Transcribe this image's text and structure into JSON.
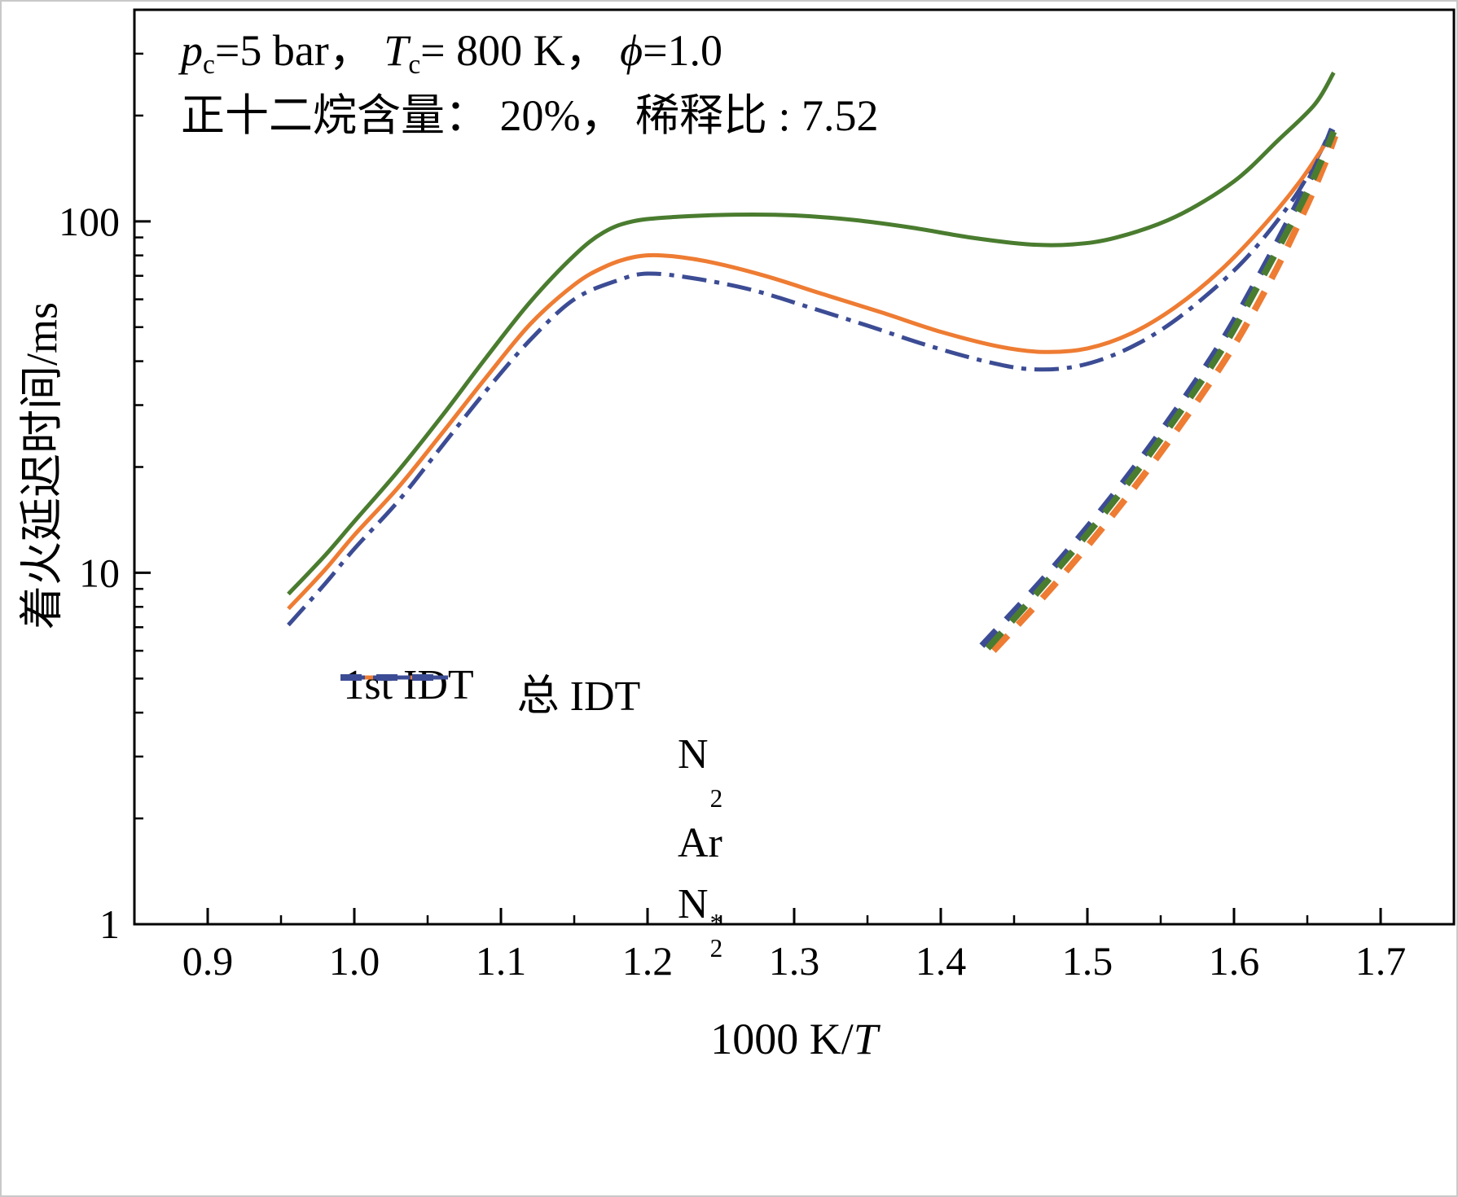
{
  "annotation": {
    "line1_parts": [
      {
        "t": "p",
        "style": "italic"
      },
      {
        "t": "c",
        "style": "sub"
      },
      {
        "t": "=5 bar， "
      },
      {
        "t": "T",
        "style": "italic"
      },
      {
        "t": "c",
        "style": "sub"
      },
      {
        "t": "= 800 K， "
      },
      {
        "t": "ϕ",
        "style": "italic"
      },
      {
        "t": "=1.0"
      }
    ],
    "line2_parts": [
      {
        "t": "正十二烷含量： 20%， 稀释比 : 7.52"
      }
    ]
  },
  "axis": {
    "ylabel": "着火延迟时间/ms",
    "xlabel_parts": [
      {
        "t": "1000 K/"
      },
      {
        "t": "T",
        "style": "italic"
      }
    ]
  },
  "legend": {
    "col1_header": "1st IDT",
    "col2_header": "总 IDT",
    "rows": [
      {
        "name": "N2",
        "main": "N",
        "sup": "",
        "sub": "2",
        "color": "#4a7c2f",
        "first_style": "dashed",
        "total_style": "solid"
      },
      {
        "name": "Ar",
        "main": "Ar",
        "sup": "",
        "sub": "",
        "color": "#ee7c33",
        "first_style": "dashed",
        "total_style": "solid"
      },
      {
        "name": "N2*",
        "main": "N",
        "sup": "*",
        "sub": "2",
        "color": "#3c4c94",
        "first_style": "dashed",
        "total_style": "dashdot"
      }
    ]
  },
  "chart_data": {
    "type": "line",
    "title": "",
    "xlabel": "1000 K/T",
    "ylabel": "着火延迟时间/ms",
    "x_axis": {
      "lim": [
        0.85,
        1.75
      ],
      "ticks": [
        "0.9",
        "1.0",
        "1.1",
        "1.2",
        "1.3",
        "1.4",
        "1.5",
        "1.6",
        "1.7"
      ],
      "minor_step": 0.05
    },
    "y_axis": {
      "scale": "log",
      "lim": [
        1,
        400
      ],
      "ticks": [
        "1",
        "10",
        "100"
      ]
    },
    "grid": false,
    "legend_position": "inside lower-center",
    "series": [
      {
        "id": "n2star-total",
        "name": "N2* 总 IDT",
        "color": "#3c4c94",
        "line_type": "dashdot",
        "points": [
          [
            0.955,
            7.1
          ],
          [
            0.98,
            9.3
          ],
          [
            1.0,
            11.7
          ],
          [
            1.03,
            16
          ],
          [
            1.06,
            23
          ],
          [
            1.09,
            33
          ],
          [
            1.12,
            46
          ],
          [
            1.15,
            60
          ],
          [
            1.18,
            68
          ],
          [
            1.2,
            71
          ],
          [
            1.23,
            69
          ],
          [
            1.27,
            64
          ],
          [
            1.31,
            57
          ],
          [
            1.35,
            50.5
          ],
          [
            1.39,
            44.5
          ],
          [
            1.43,
            40
          ],
          [
            1.46,
            38
          ],
          [
            1.49,
            38.5
          ],
          [
            1.52,
            42
          ],
          [
            1.55,
            49
          ],
          [
            1.58,
            61
          ],
          [
            1.61,
            80
          ],
          [
            1.64,
            115
          ],
          [
            1.658,
            155
          ],
          [
            1.668,
            190
          ]
        ]
      },
      {
        "id": "ar-total",
        "name": "Ar 总 IDT",
        "color": "#ee7c33",
        "line_type": "solid",
        "points": [
          [
            0.955,
            7.9
          ],
          [
            0.98,
            10.2
          ],
          [
            1.0,
            12.8
          ],
          [
            1.03,
            17.5
          ],
          [
            1.06,
            25
          ],
          [
            1.09,
            36
          ],
          [
            1.12,
            51
          ],
          [
            1.15,
            66
          ],
          [
            1.17,
            74
          ],
          [
            1.19,
            79
          ],
          [
            1.21,
            80
          ],
          [
            1.24,
            77
          ],
          [
            1.28,
            70
          ],
          [
            1.32,
            62
          ],
          [
            1.36,
            55
          ],
          [
            1.4,
            48.5
          ],
          [
            1.44,
            44
          ],
          [
            1.47,
            42.5
          ],
          [
            1.5,
            43.5
          ],
          [
            1.53,
            48
          ],
          [
            1.56,
            57
          ],
          [
            1.59,
            72
          ],
          [
            1.62,
            97
          ],
          [
            1.645,
            130
          ],
          [
            1.663,
            168
          ]
        ]
      },
      {
        "id": "n2-total",
        "name": "N2 总 IDT",
        "color": "#4a7c2f",
        "line_type": "solid",
        "points": [
          [
            0.955,
            8.7
          ],
          [
            0.98,
            11.2
          ],
          [
            1.0,
            14
          ],
          [
            1.03,
            19.5
          ],
          [
            1.06,
            28
          ],
          [
            1.09,
            41
          ],
          [
            1.12,
            59
          ],
          [
            1.15,
            80
          ],
          [
            1.17,
            93
          ],
          [
            1.19,
            100
          ],
          [
            1.22,
            103
          ],
          [
            1.26,
            104.5
          ],
          [
            1.3,
            104
          ],
          [
            1.34,
            101
          ],
          [
            1.38,
            96
          ],
          [
            1.42,
            90
          ],
          [
            1.46,
            86
          ],
          [
            1.49,
            86
          ],
          [
            1.52,
            90
          ],
          [
            1.56,
            103
          ],
          [
            1.6,
            130
          ],
          [
            1.63,
            170
          ],
          [
            1.655,
            215
          ],
          [
            1.668,
            265
          ]
        ]
      },
      {
        "id": "n2star-first",
        "name": "N2* 1st IDT",
        "color": "#3c4c94",
        "line_type": "dashed",
        "points": [
          [
            1.428,
            6.2
          ],
          [
            1.468,
            9.4
          ],
          [
            1.508,
            14.8
          ],
          [
            1.548,
            24.5
          ],
          [
            1.588,
            43
          ],
          [
            1.618,
            71
          ],
          [
            1.643,
            112
          ],
          [
            1.659,
            152
          ],
          [
            1.667,
            183
          ]
        ]
      },
      {
        "id": "ar-first",
        "name": "Ar 1st IDT",
        "color": "#ee7c33",
        "line_type": "dashed",
        "points": [
          [
            1.436,
            6.0
          ],
          [
            1.475,
            9.0
          ],
          [
            1.515,
            14.2
          ],
          [
            1.555,
            23.5
          ],
          [
            1.595,
            41
          ],
          [
            1.625,
            68
          ],
          [
            1.648,
            107
          ],
          [
            1.662,
            146
          ],
          [
            1.669,
            175
          ]
        ]
      },
      {
        "id": "n2-first",
        "name": "N2 1st IDT",
        "color": "#4a7c2f",
        "line_type": "dashed",
        "points": [
          [
            1.432,
            6.1
          ],
          [
            1.47,
            9.2
          ],
          [
            1.51,
            14.5
          ],
          [
            1.55,
            24
          ],
          [
            1.59,
            42
          ],
          [
            1.62,
            70
          ],
          [
            1.645,
            110
          ],
          [
            1.66,
            150
          ],
          [
            1.668,
            180
          ]
        ]
      }
    ]
  }
}
